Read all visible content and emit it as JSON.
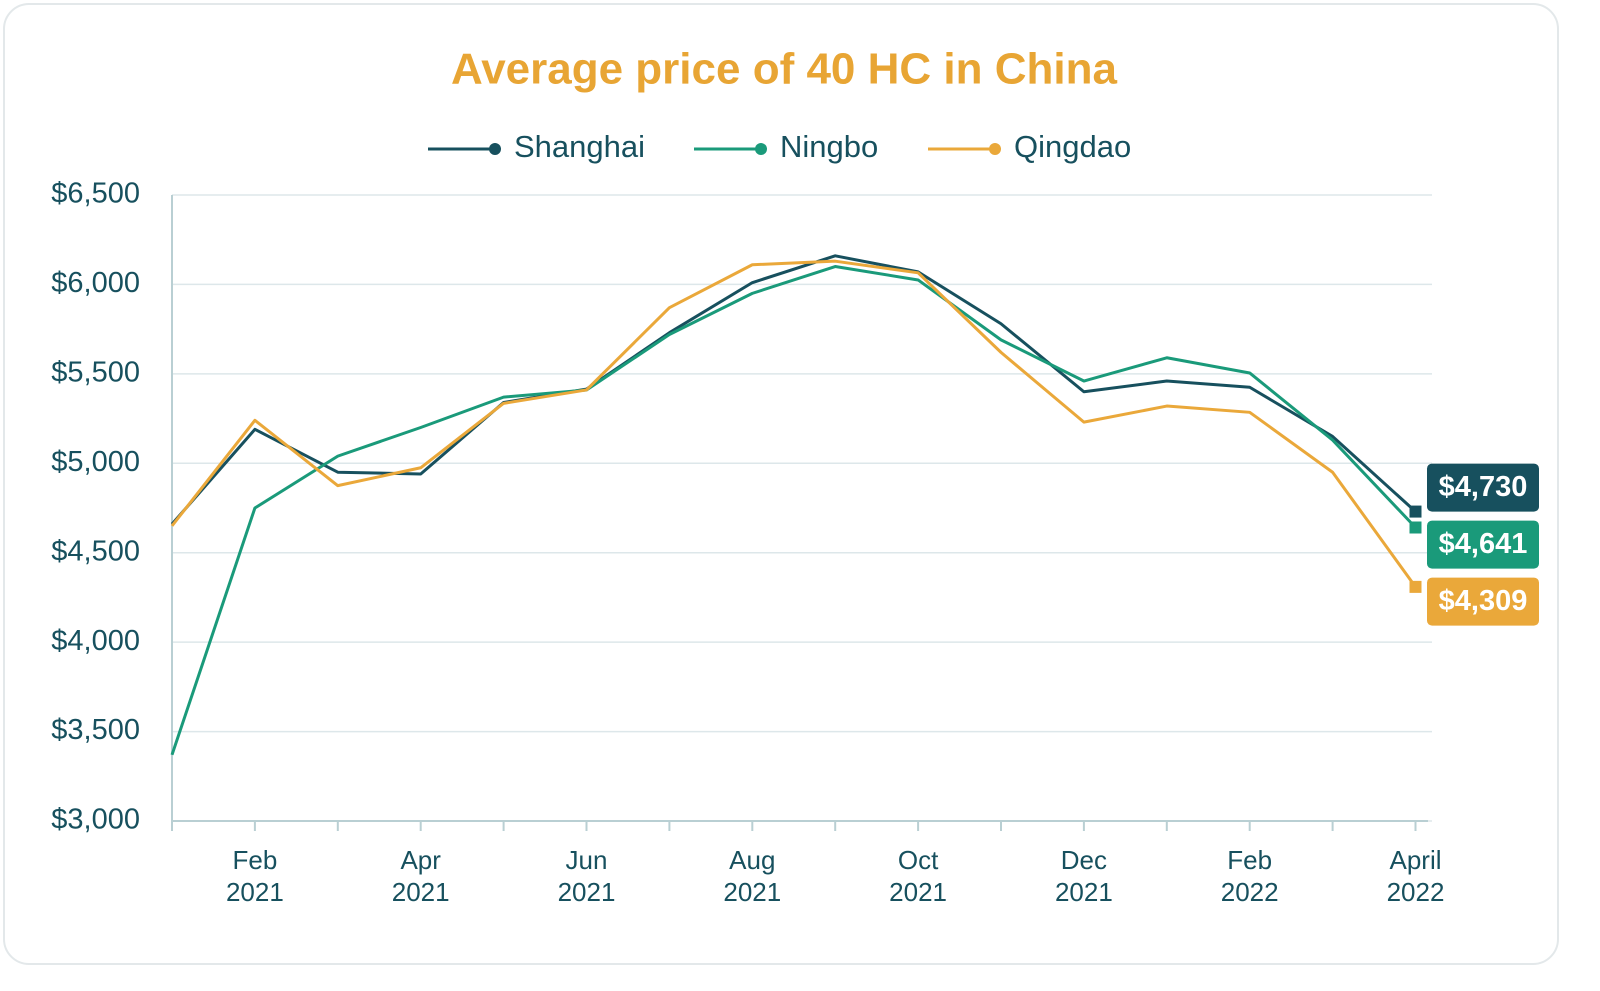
{
  "chart_data": {
    "type": "line",
    "title": "Average price of 40 HC in China",
    "categories": [
      null,
      "Feb 2021",
      null,
      "Apr 2021",
      null,
      "Jun 2021",
      null,
      "Aug 2021",
      null,
      "Oct 2021",
      null,
      "Dec 2021",
      null,
      "Feb 2022",
      null,
      "April 2022"
    ],
    "series": [
      {
        "name": "Shanghai",
        "color": "#17505e",
        "values": [
          4660,
          5190,
          4950,
          4940,
          5340,
          5415,
          5730,
          6010,
          6160,
          6070,
          5780,
          5400,
          5460,
          5425,
          5150,
          4730
        ],
        "value_labels": [
          null,
          null,
          null,
          null,
          null,
          null,
          null,
          null,
          null,
          null,
          null,
          null,
          null,
          null,
          null,
          "$4,730"
        ]
      },
      {
        "name": "Ningbo",
        "color": "#1a9a7a",
        "values": [
          3370,
          4750,
          5040,
          5200,
          5370,
          5410,
          5720,
          5950,
          6100,
          6025,
          5690,
          5460,
          5590,
          5505,
          5130,
          4641
        ],
        "value_labels": [
          null,
          null,
          null,
          null,
          null,
          null,
          null,
          null,
          null,
          null,
          null,
          null,
          null,
          null,
          null,
          "$4,641"
        ]
      },
      {
        "name": "Qingdao",
        "color": "#eaa83a",
        "values": [
          4650,
          5240,
          4875,
          4975,
          5335,
          5410,
          5870,
          6110,
          6130,
          6065,
          5620,
          5230,
          5320,
          5285,
          4950,
          4309
        ],
        "value_labels": [
          null,
          null,
          null,
          null,
          null,
          null,
          null,
          null,
          null,
          null,
          null,
          null,
          null,
          null,
          null,
          "$4,309"
        ]
      }
    ],
    "ylim": [
      3000,
      6500
    ],
    "yticks": [
      {
        "value": 3000,
        "label": "$3,000"
      },
      {
        "value": 3500,
        "label": "$3,500"
      },
      {
        "value": 4000,
        "label": "$4,000"
      },
      {
        "value": 4500,
        "label": "$4,500"
      },
      {
        "value": 5000,
        "label": "$5,000"
      },
      {
        "value": 5500,
        "label": "$5,500"
      },
      {
        "value": 6000,
        "label": "$6,000"
      },
      {
        "value": 6500,
        "label": "$6,500"
      }
    ],
    "grid": true,
    "legend": "top"
  }
}
